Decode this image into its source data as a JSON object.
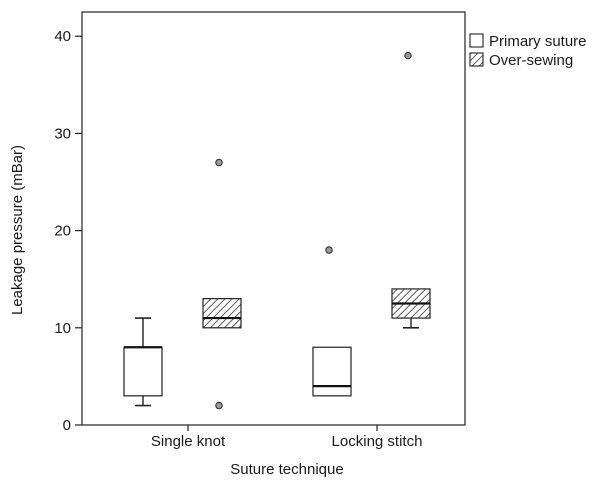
{
  "chart_data": {
    "type": "boxplot",
    "title": "",
    "xlabel": "Suture technique",
    "ylabel": "Leakage pressure (mBar)",
    "ylim": [
      0,
      42
    ],
    "yticks": [
      0,
      10,
      20,
      30,
      40
    ],
    "categories": [
      "Single knot",
      "Locking stitch"
    ],
    "legend": {
      "position": "top-right"
    },
    "series": [
      {
        "name": "Primary suture",
        "fill": "plain",
        "boxes": [
          {
            "category": "Single knot",
            "whisker_low": 2,
            "q1": 3,
            "median": 8,
            "q3": 8,
            "whisker_high": 11,
            "outliers": []
          },
          {
            "category": "Locking stitch",
            "whisker_low": 3,
            "q1": 3,
            "median": 4,
            "q3": 8,
            "whisker_high": 8,
            "outliers": [
              18
            ]
          }
        ]
      },
      {
        "name": "Over-sewing",
        "fill": "hatched",
        "boxes": [
          {
            "category": "Single knot",
            "whisker_low": 10,
            "q1": 10,
            "median": 11,
            "q3": 13,
            "whisker_high": 13,
            "outliers": [
              2,
              27
            ]
          },
          {
            "category": "Locking stitch",
            "whisker_low": 10,
            "q1": 11,
            "median": 12.5,
            "q3": 14,
            "whisker_high": 14,
            "outliers": [
              38
            ]
          }
        ]
      }
    ]
  }
}
